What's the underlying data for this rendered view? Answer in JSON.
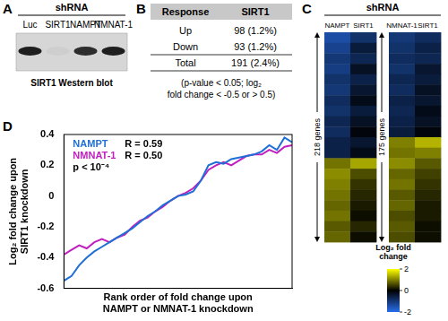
{
  "panel_a": {
    "panel_label": "A",
    "title": "shRNA",
    "lanes": [
      "Luc",
      "SIRT1",
      "NAMPT",
      "NMNAT-1"
    ],
    "band_intensity": [
      1,
      0.04,
      0.92,
      1
    ],
    "caption": "SIRT1 Western blot"
  },
  "panel_b": {
    "panel_label": "B",
    "table": {
      "header": [
        "Response",
        "SIRT1"
      ],
      "rows": [
        [
          "Up",
          "98 (1.2%)"
        ],
        [
          "Down",
          "93 (1.2%)"
        ],
        [
          "Total",
          "191 (2.4%)"
        ]
      ]
    },
    "footnote": [
      "(p-value < 0.05; log₂",
      "fold change < -0.5 or > 0.5)"
    ]
  },
  "panel_c": {
    "panel_label": "C",
    "title": "shRNA",
    "heatmaps": [
      {
        "columns": [
          "NAMPT",
          "SIRT1"
        ],
        "rows_label": "218 genes",
        "cells": [
          [
            -1.4,
            -0.9
          ],
          [
            -1.2,
            -0.5
          ],
          [
            -1.0,
            -0.7
          ],
          [
            -1.1,
            -0.3
          ],
          [
            -0.9,
            -0.6
          ],
          [
            -1.0,
            -0.4
          ],
          [
            -0.8,
            -0.2
          ],
          [
            -0.9,
            -0.5
          ],
          [
            -0.7,
            -0.3
          ],
          [
            -0.8,
            -0.1
          ],
          [
            -0.6,
            -0.4
          ],
          [
            -0.6,
            -0.2
          ],
          [
            0.9,
            1.3
          ],
          [
            1.1,
            0.6
          ],
          [
            1.0,
            0.4
          ],
          [
            0.9,
            0.3
          ],
          [
            0.8,
            0.2
          ],
          [
            0.9,
            0.1
          ],
          [
            0.7,
            0.3
          ],
          [
            0.8,
            0.1
          ]
        ]
      },
      {
        "columns": [
          "NMNAT-1",
          "SIRT1"
        ],
        "rows_label": "175 genes",
        "cells": [
          [
            -1.0,
            -0.8
          ],
          [
            -0.9,
            -0.6
          ],
          [
            -0.8,
            -0.7
          ],
          [
            -0.9,
            -0.4
          ],
          [
            -0.7,
            -0.5
          ],
          [
            -0.8,
            -0.3
          ],
          [
            -0.6,
            -0.4
          ],
          [
            -0.7,
            -0.2
          ],
          [
            -0.6,
            -0.3
          ],
          [
            -0.5,
            -0.1
          ],
          [
            1.0,
            1.4
          ],
          [
            0.9,
            1.0
          ],
          [
            1.1,
            0.7
          ],
          [
            0.8,
            0.5
          ],
          [
            0.9,
            0.4
          ],
          [
            0.7,
            0.3
          ],
          [
            0.8,
            0.2
          ],
          [
            0.6,
            0.2
          ],
          [
            0.7,
            0.1
          ],
          [
            0.6,
            0.1
          ]
        ]
      }
    ],
    "colorbar": {
      "title": [
        "Log₂ fold",
        "change"
      ],
      "range": [
        -2,
        2
      ],
      "ticks": [
        2,
        0,
        -2
      ]
    }
  },
  "chart_data": {
    "panel_label": "D",
    "type": "line",
    "x_label": [
      "Rank order of fold change upon",
      "NAMPT or NMNAT-1 knockdown"
    ],
    "y_label": [
      "Log₂ fold change upon",
      "SIRT1 knockdown"
    ],
    "x": [
      0,
      1,
      2,
      3,
      4,
      5,
      6,
      7,
      8,
      9,
      10,
      11,
      12,
      13,
      14,
      15,
      16,
      17,
      18,
      19,
      20,
      21,
      22,
      23,
      24,
      25,
      26,
      27,
      28,
      29,
      30
    ],
    "xlim": [
      0,
      30
    ],
    "ylim": [
      -0.6,
      0.4
    ],
    "yticks": [
      -0.6,
      -0.4,
      -0.2,
      0,
      0.2,
      0.4
    ],
    "tick_labels": "y",
    "grid": false,
    "legend": "upper left",
    "annotations": [
      "R = 0.59",
      "R = 0.50",
      "p < 10⁻⁴"
    ],
    "series": [
      {
        "name": "NAMPT",
        "color": "#1f6fd6",
        "values": [
          -0.55,
          -0.52,
          -0.45,
          -0.4,
          -0.36,
          -0.33,
          -0.3,
          -0.27,
          -0.24,
          -0.21,
          -0.17,
          -0.13,
          -0.1,
          -0.06,
          -0.03,
          0.0,
          0.01,
          0.03,
          0.1,
          0.2,
          0.22,
          0.21,
          0.24,
          0.25,
          0.26,
          0.27,
          0.29,
          0.33,
          0.3,
          0.38,
          0.35
        ]
      },
      {
        "name": "NMNAT-1",
        "color": "#c020c0",
        "values": [
          -0.38,
          -0.35,
          -0.32,
          -0.34,
          -0.3,
          -0.28,
          -0.3,
          -0.27,
          -0.25,
          -0.2,
          -0.16,
          -0.14,
          -0.1,
          -0.07,
          -0.03,
          0.0,
          0.02,
          0.05,
          0.1,
          0.17,
          0.2,
          0.22,
          0.2,
          0.23,
          0.26,
          0.27,
          0.27,
          0.3,
          0.28,
          0.32,
          0.33
        ]
      }
    ]
  }
}
